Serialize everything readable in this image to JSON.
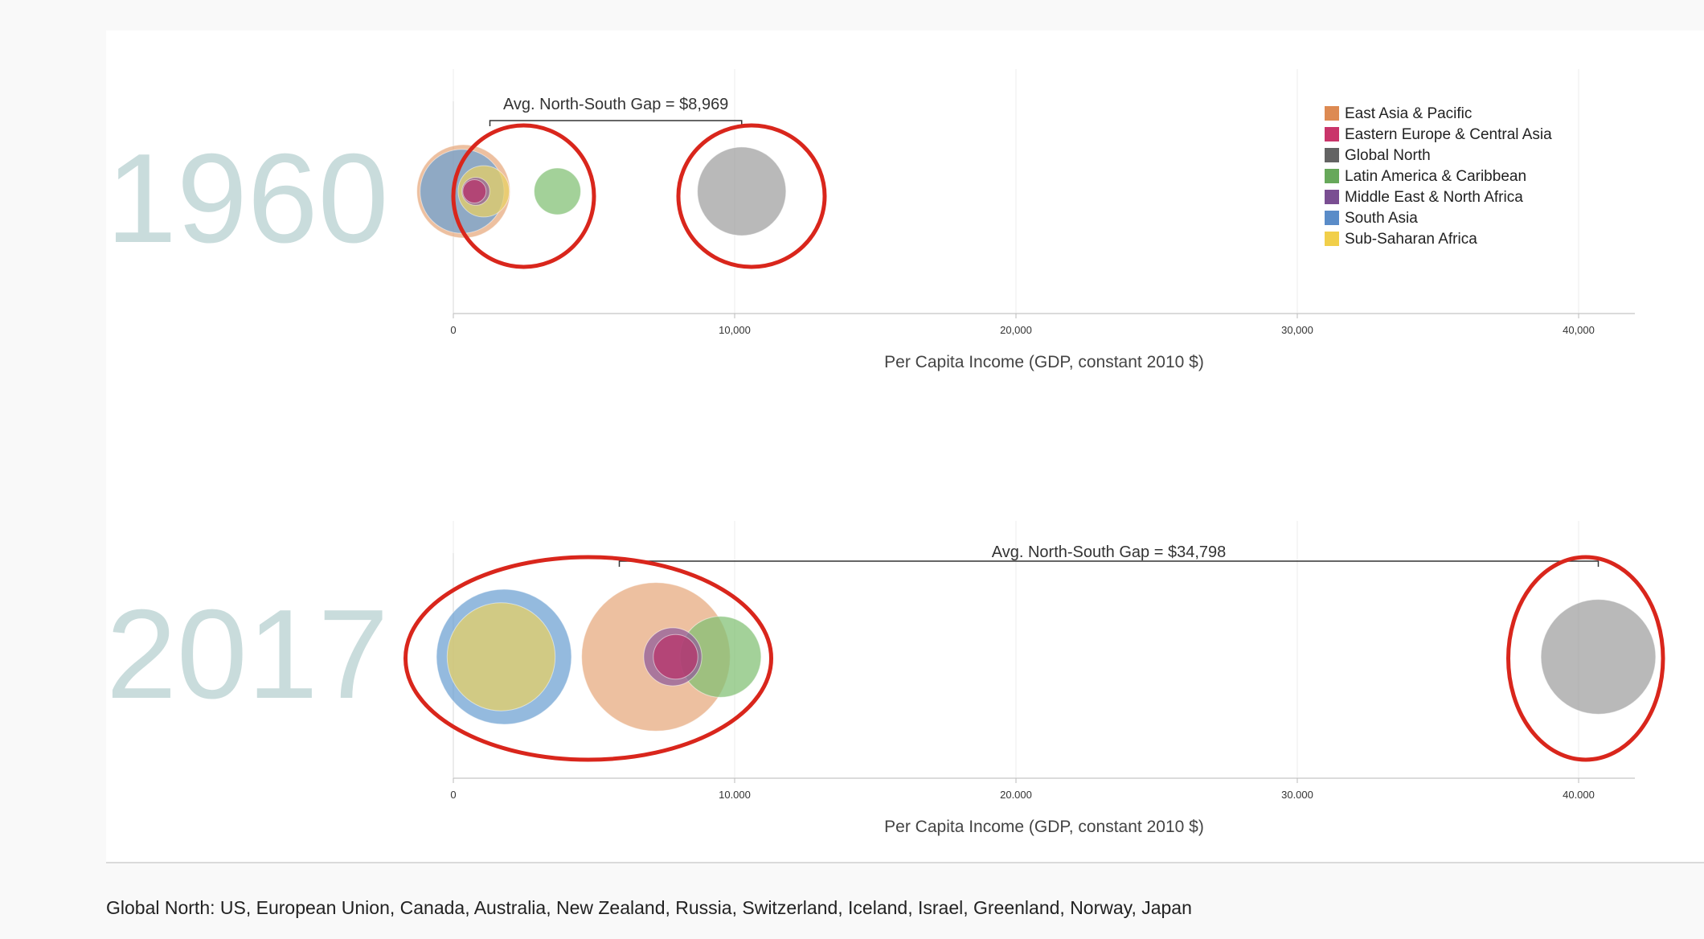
{
  "chart_data": [
    {
      "type": "scatter",
      "title": "",
      "year_label": "1960",
      "xlabel": "Per Capita Income (GDP, constant 2010 $)",
      "ylabel": "",
      "xlim": [
        0,
        42000
      ],
      "xticks": [
        0,
        10000,
        20000,
        30000,
        40000
      ],
      "xtick_labels": [
        "0",
        "10,000",
        "20,000",
        "30,000",
        "40,000"
      ],
      "grid": "vertical",
      "legend_position": "top-right",
      "annotation": {
        "text": "Avg. North-South Gap = $8,969",
        "x_start": 1300,
        "x_end": 10250
      },
      "circled_groups": [
        [
          0,
          5000
        ],
        [
          8000,
          13200
        ]
      ],
      "series": [
        {
          "name": "East Asia & Pacific",
          "x": 360,
          "relative_size": 1.0
        },
        {
          "name": "South Asia",
          "x": 310,
          "relative_size": 0.9
        },
        {
          "name": "Sub-Saharan Africa",
          "x": 1080,
          "relative_size": 0.55
        },
        {
          "name": "Eastern Europe & Central Asia",
          "x": 750,
          "relative_size": 0.25
        },
        {
          "name": "Middle East & North Africa",
          "x": 800,
          "relative_size": 0.3
        },
        {
          "name": "Latin America & Caribbean",
          "x": 3700,
          "relative_size": 0.5
        },
        {
          "name": "Global North",
          "x": 10250,
          "relative_size": 0.95
        }
      ]
    },
    {
      "type": "scatter",
      "title": "",
      "year_label": "2017",
      "xlabel": "Per Capita Income (GDP, constant 2010 $)",
      "ylabel": "",
      "xlim": [
        0,
        42000
      ],
      "xticks": [
        0,
        10000,
        20000,
        30000,
        40000
      ],
      "xtick_labels": [
        "0",
        "10.000",
        "20.000",
        "30.000",
        "40.000"
      ],
      "grid": "vertical",
      "legend_position": "none",
      "annotation": {
        "text": "Avg. North-South Gap = $34,798",
        "x_start": 5900,
        "x_end": 40700
      },
      "circled_groups": [
        [
          -1700,
          11300
        ],
        [
          37500,
          43000
        ]
      ],
      "series": [
        {
          "name": "South Asia",
          "x": 1800,
          "relative_size": 1.0
        },
        {
          "name": "Sub-Saharan Africa",
          "x": 1700,
          "relative_size": 0.8
        },
        {
          "name": "East Asia & Pacific",
          "x": 7200,
          "relative_size": 1.1
        },
        {
          "name": "Latin America & Caribbean",
          "x": 9500,
          "relative_size": 0.6
        },
        {
          "name": "Middle East & North Africa",
          "x": 7800,
          "relative_size": 0.43
        },
        {
          "name": "Eastern Europe & Central Asia",
          "x": 7900,
          "relative_size": 0.33
        },
        {
          "name": "Global North",
          "x": 40700,
          "relative_size": 0.85
        }
      ]
    }
  ],
  "legend": [
    {
      "name": "East Asia & Pacific",
      "color": "#dd8a52"
    },
    {
      "name": "Eastern Europe & Central Asia",
      "color": "#c9356a"
    },
    {
      "name": "Global North",
      "color": "#636363"
    },
    {
      "name": "Latin America & Caribbean",
      "color": "#67a85a"
    },
    {
      "name": "Middle East & North Africa",
      "color": "#7a4e92"
    },
    {
      "name": "South Asia",
      "color": "#5a8cc8"
    },
    {
      "name": "Sub-Saharan Africa",
      "color": "#f1cf4a"
    }
  ],
  "bubble_colors": {
    "East Asia & Pacific": "#e6a87c",
    "Eastern Europe & Central Asia": "#b8326a",
    "Global North": "#9e9e9e",
    "Latin America & Caribbean": "#7fbf72",
    "Middle East & North Africa": "#8f5a9a",
    "South Asia": "#6b9fd1",
    "Sub-Saharan Africa": "#e9d061"
  },
  "highlight_color": "#d9261c",
  "footnote": "Global North: US, European Union, Canada, Australia, New Zealand, Russia, Switzerland, Iceland, Israel, Greenland, Norway, Japan"
}
